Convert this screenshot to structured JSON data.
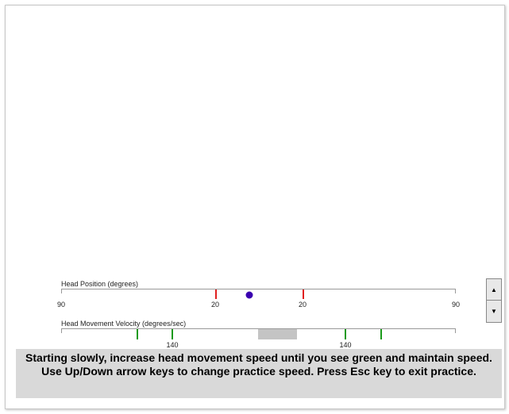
{
  "head_position": {
    "label": "Head Position (degrees)",
    "tick_labels": [
      "90",
      "20",
      "20",
      "90"
    ],
    "marker_color": "#e02020",
    "dot_color": "#3a00b0"
  },
  "velocity": {
    "label": "Head Movement Velocity (degrees/sec)",
    "tick_labels": [
      "140",
      "140"
    ],
    "marker_color": "#1a9a1a",
    "zone_color": "#c4c4c4"
  },
  "stepper": {
    "up_icon": "triangle-up-icon",
    "down_icon": "triangle-down-icon"
  },
  "instructions": "Starting slowly, increase head movement speed until you see green and maintain speed. Use Up/Down arrow keys to change practice speed. Press Esc key to exit practice."
}
